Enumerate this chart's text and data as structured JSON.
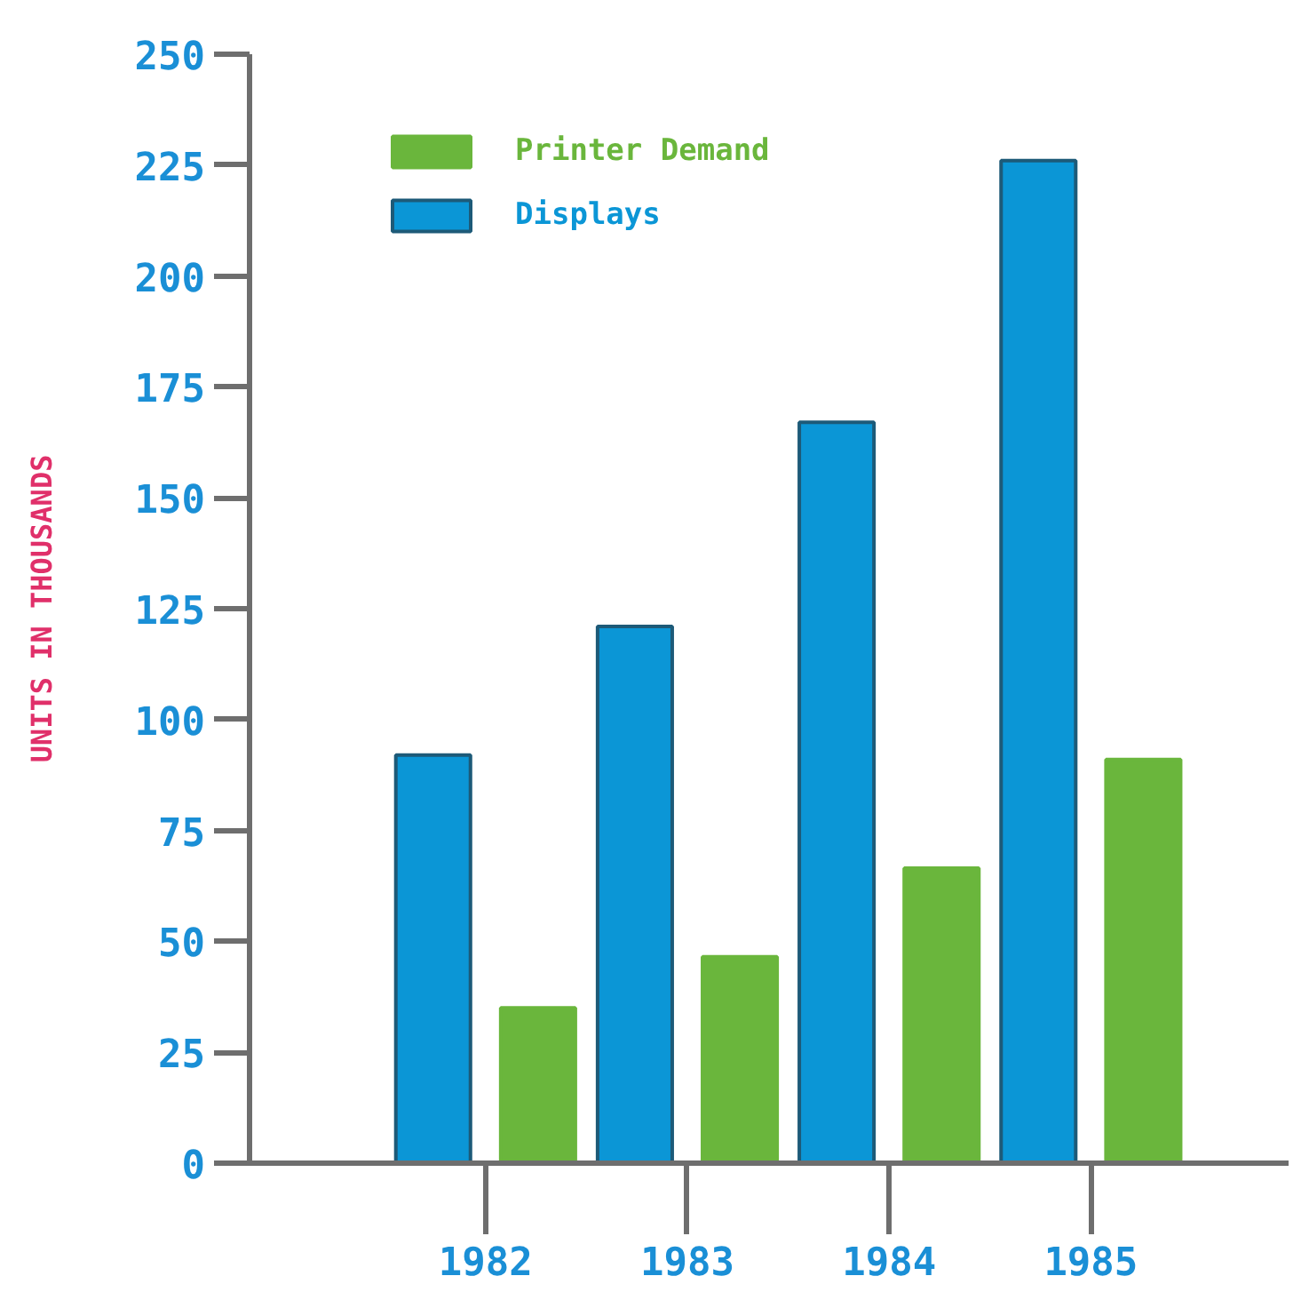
{
  "chart_data": {
    "type": "bar",
    "ylabel": "UNITS IN THOUSANDS",
    "categories": [
      "1982",
      "1983",
      "1984",
      "1985"
    ],
    "series": [
      {
        "name": "Displays",
        "color": "#0b96d6",
        "values": [
          92,
          121,
          167,
          226
        ]
      },
      {
        "name": "Printer Demand",
        "color": "#6ab63c",
        "values": [
          35,
          46.5,
          66.5,
          91
        ]
      }
    ],
    "ylim": [
      0,
      250
    ],
    "yticks": [
      0,
      25,
      50,
      75,
      100,
      125,
      150,
      175,
      200,
      225,
      250
    ],
    "grid": false,
    "legend": "top left"
  }
}
